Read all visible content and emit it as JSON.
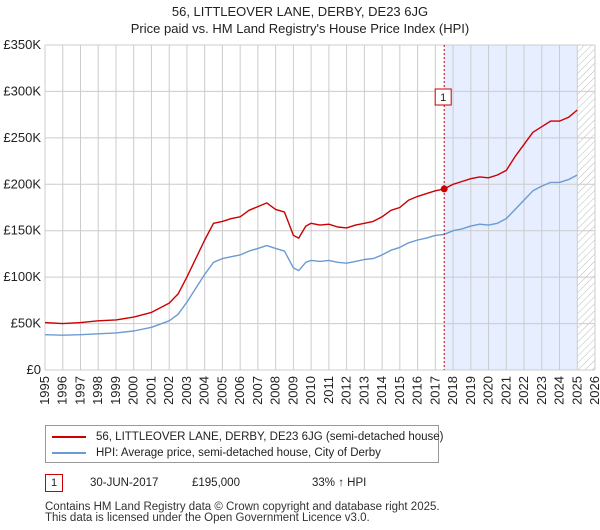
{
  "title_line1": "56, LITTLEOVER LANE, DERBY, DE23 6JG",
  "title_line2": "Price paid vs. HM Land Registry's House Price Index (HPI)",
  "colors": {
    "property": "#cc0000",
    "hpi": "#6b9bd2",
    "shade": "#e6eeff",
    "grid": "#cccccc"
  },
  "chart_data": {
    "type": "line",
    "title": "56, LITTLEOVER LANE, DERBY, DE23 6JG — Price paid vs. HM Land Registry's House Price Index (HPI)",
    "xlabel": "",
    "ylabel": "",
    "xlim": [
      1995,
      2026
    ],
    "ylim": [
      0,
      350000
    ],
    "y_ticks": [
      0,
      50000,
      100000,
      150000,
      200000,
      250000,
      300000,
      350000
    ],
    "y_tick_labels": [
      "£0",
      "£50K",
      "£100K",
      "£150K",
      "£200K",
      "£250K",
      "£300K",
      "£350K"
    ],
    "x_ticks": [
      1995,
      1996,
      1997,
      1998,
      1999,
      2000,
      2001,
      2002,
      2003,
      2004,
      2005,
      2006,
      2007,
      2008,
      2009,
      2010,
      2011,
      2012,
      2013,
      2014,
      2015,
      2016,
      2017,
      2018,
      2019,
      2020,
      2021,
      2022,
      2023,
      2024,
      2025,
      2026
    ],
    "grid": true,
    "series": [
      {
        "name": "56, LITTLEOVER LANE, DERBY, DE23 6JG (semi-detached house)",
        "color": "#cc0000",
        "x": [
          1995.0,
          1996.0,
          1997.0,
          1998.0,
          1999.0,
          2000.0,
          2001.0,
          2002.0,
          2002.5,
          2003.0,
          2003.5,
          2004.0,
          2004.5,
          2005.0,
          2005.5,
          2006.0,
          2006.5,
          2007.0,
          2007.5,
          2008.0,
          2008.5,
          2009.0,
          2009.3,
          2009.7,
          2010.0,
          2010.5,
          2011.0,
          2011.5,
          2012.0,
          2012.5,
          2013.0,
          2013.5,
          2014.0,
          2014.5,
          2015.0,
          2015.5,
          2016.0,
          2016.5,
          2017.0,
          2017.5,
          2018.0,
          2018.5,
          2019.0,
          2019.5,
          2020.0,
          2020.5,
          2021.0,
          2021.5,
          2022.0,
          2022.5,
          2023.0,
          2023.5,
          2024.0,
          2024.5,
          2025.0
        ],
        "values": [
          51000,
          50000,
          51000,
          53000,
          54000,
          57000,
          62000,
          72000,
          82000,
          100000,
          120000,
          140000,
          158000,
          160000,
          163000,
          165000,
          172000,
          176000,
          180000,
          173000,
          170000,
          145000,
          142000,
          155000,
          158000,
          156000,
          157000,
          154000,
          153000,
          156000,
          158000,
          160000,
          165000,
          172000,
          175000,
          183000,
          187000,
          190000,
          193000,
          195000,
          200000,
          203000,
          206000,
          208000,
          207000,
          210000,
          215000,
          230000,
          243000,
          256000,
          262000,
          268000,
          268000,
          272000,
          280000
        ]
      },
      {
        "name": "HPI: Average price, semi-detached house, City of Derby",
        "color": "#6b9bd2",
        "x": [
          1995.0,
          1996.0,
          1997.0,
          1998.0,
          1999.0,
          2000.0,
          2001.0,
          2002.0,
          2002.5,
          2003.0,
          2003.5,
          2004.0,
          2004.5,
          2005.0,
          2005.5,
          2006.0,
          2006.5,
          2007.0,
          2007.5,
          2008.0,
          2008.5,
          2009.0,
          2009.3,
          2009.7,
          2010.0,
          2010.5,
          2011.0,
          2011.5,
          2012.0,
          2012.5,
          2013.0,
          2013.5,
          2014.0,
          2014.5,
          2015.0,
          2015.5,
          2016.0,
          2016.5,
          2017.0,
          2017.5,
          2018.0,
          2018.5,
          2019.0,
          2019.5,
          2020.0,
          2020.5,
          2021.0,
          2021.5,
          2022.0,
          2022.5,
          2023.0,
          2023.5,
          2024.0,
          2024.5,
          2025.0
        ],
        "values": [
          38000,
          37500,
          38000,
          39000,
          40000,
          42000,
          46000,
          53000,
          60000,
          73000,
          88000,
          103000,
          116000,
          120000,
          122000,
          124000,
          128000,
          131000,
          134000,
          131000,
          128000,
          110000,
          107000,
          116000,
          118000,
          117000,
          118000,
          116000,
          115000,
          117000,
          119000,
          120000,
          124000,
          129000,
          132000,
          137000,
          140000,
          142000,
          145000,
          146000,
          150000,
          152000,
          155000,
          157000,
          156000,
          158000,
          163000,
          173000,
          183000,
          193000,
          198000,
          202000,
          202000,
          205000,
          210000
        ]
      }
    ],
    "sales": [
      {
        "label": "1",
        "date": "30-JUN-2017",
        "x": 2017.5,
        "price_value": 195000,
        "price": "£195,000",
        "hpi_change": "33% ↑ HPI"
      }
    ],
    "shaded_region": [
      2017.5,
      2025.0
    ],
    "hatched_region": [
      2025.0,
      2026.0
    ]
  },
  "legend": {
    "property_label": "56, LITTLEOVER LANE, DERBY, DE23 6JG (semi-detached house)",
    "hpi_label": "HPI: Average price, semi-detached house, City of Derby"
  },
  "sale_row": {
    "badge": "1",
    "date": "30-JUN-2017",
    "price": "£195,000",
    "change": "33% ↑ HPI"
  },
  "footer": {
    "line1": "Contains HM Land Registry data © Crown copyright and database right 2025.",
    "line2": "This data is licensed under the Open Government Licence v3.0."
  }
}
